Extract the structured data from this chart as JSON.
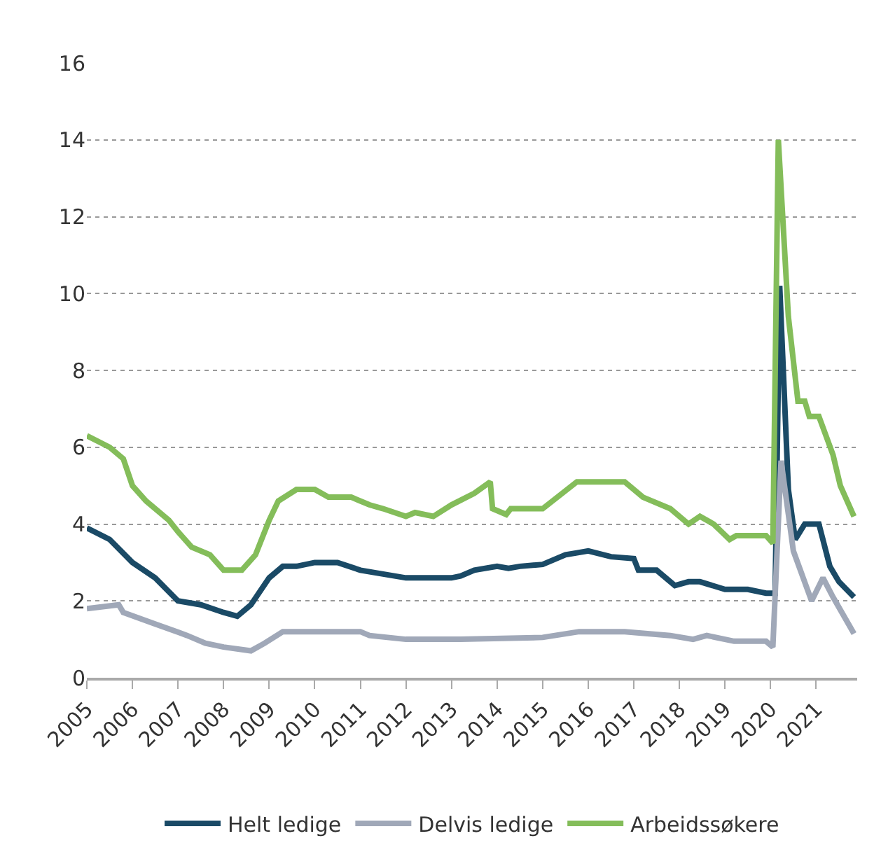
{
  "chart_data": {
    "type": "line",
    "xlim": [
      2005,
      2021.9
    ],
    "xticks": [
      2005,
      2006,
      2007,
      2008,
      2009,
      2010,
      2011,
      2012,
      2013,
      2014,
      2015,
      2016,
      2017,
      2018,
      2019,
      2020,
      2021
    ],
    "ylim": [
      0,
      16
    ],
    "yticks": [
      0,
      2,
      4,
      6,
      8,
      10,
      12,
      14,
      16
    ],
    "grid": "y",
    "legend": "bottom",
    "marker": "none",
    "line_style": "solid",
    "series": [
      {
        "name": "Helt ledige",
        "color": "#1a4a66",
        "x": [
          2005,
          2005.5,
          2006,
          2006.5,
          2007,
          2007.5,
          2008,
          2008.3,
          2008.6,
          2009,
          2009.3,
          2009.6,
          2010,
          2010.5,
          2011,
          2011.5,
          2012,
          2012.5,
          2013,
          2013.2,
          2013.5,
          2014,
          2014.25,
          2014.5,
          2015,
          2015.5,
          2015.75,
          2016,
          2016.5,
          2017,
          2017.1,
          2017.5,
          2017.9,
          2018.2,
          2018.45,
          2019,
          2019.5,
          2019.9,
          2020.1,
          2020.2,
          2020.39,
          2020.54,
          2020.75,
          2021.06,
          2021.3,
          2021.5,
          2021.83
        ],
        "values": [
          3.9,
          3.6,
          3.0,
          2.6,
          2.0,
          1.9,
          1.7,
          1.6,
          1.9,
          2.6,
          2.9,
          2.9,
          3.0,
          3.0,
          2.8,
          2.7,
          2.6,
          2.6,
          2.6,
          2.65,
          2.8,
          2.9,
          2.85,
          2.9,
          2.95,
          3.2,
          3.25,
          3.3,
          3.15,
          3.1,
          2.8,
          2.8,
          2.4,
          2.5,
          2.5,
          2.3,
          2.3,
          2.2,
          2.2,
          10.2,
          4.9,
          3.6,
          4.0,
          4.0,
          2.9,
          2.5,
          2.1
        ]
      },
      {
        "name": "Delvis ledige",
        "color": "#a0a8b8",
        "x": [
          2005,
          2005.7,
          2005.8,
          2006.5,
          2007.2,
          2007.6,
          2008,
          2008.6,
          2008.9,
          2009.3,
          2011,
          2011.2,
          2012,
          2013.2,
          2015,
          2015.8,
          2016.8,
          2017.8,
          2018.3,
          2018.6,
          2019.2,
          2019.9,
          2020.05,
          2020.23,
          2020.5,
          2020.9,
          2021.15,
          2021.37,
          2021.83
        ],
        "values": [
          1.8,
          1.9,
          1.7,
          1.4,
          1.1,
          0.9,
          0.8,
          0.7,
          0.9,
          1.2,
          1.2,
          1.1,
          1.0,
          1.0,
          1.05,
          1.2,
          1.2,
          1.1,
          1.0,
          1.1,
          0.95,
          0.95,
          0.8,
          5.65,
          3.3,
          2.0,
          2.6,
          2.1,
          1.15
        ]
      },
      {
        "name": "Arbeidssøkere",
        "color": "#84bd5a",
        "x": [
          2005,
          2005.5,
          2005.8,
          2006,
          2006.3,
          2006.8,
          2007,
          2007.3,
          2007.7,
          2008,
          2008.4,
          2008.7,
          2009,
          2009.2,
          2009.6,
          2010,
          2010.3,
          2010.8,
          2011.2,
          2011.5,
          2012,
          2012.2,
          2012.6,
          2013,
          2013.5,
          2013.85,
          2013.9,
          2014.2,
          2014.3,
          2015,
          2015.75,
          2016.8,
          2017.2,
          2017.8,
          2018.2,
          2018.45,
          2018.75,
          2019.1,
          2019.25,
          2019.9,
          2020.05,
          2020.17,
          2020.39,
          2020.6,
          2020.75,
          2020.85,
          2021.06,
          2021.37,
          2021.53,
          2021.83
        ],
        "values": [
          6.3,
          6.0,
          5.7,
          5.0,
          4.6,
          4.1,
          3.8,
          3.4,
          3.2,
          2.8,
          2.8,
          3.2,
          4.1,
          4.6,
          4.9,
          4.9,
          4.7,
          4.7,
          4.5,
          4.4,
          4.2,
          4.3,
          4.2,
          4.5,
          4.8,
          5.1,
          4.4,
          4.25,
          4.4,
          4.4,
          5.1,
          5.1,
          4.7,
          4.4,
          4.0,
          4.2,
          4.0,
          3.6,
          3.7,
          3.7,
          3.5,
          14.0,
          9.4,
          7.2,
          7.2,
          6.8,
          6.8,
          5.8,
          5.0,
          4.2
        ]
      }
    ]
  }
}
